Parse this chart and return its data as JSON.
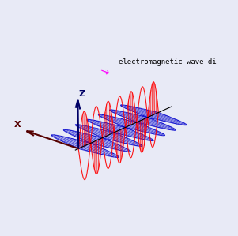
{
  "background_color": "#e8eaf6",
  "wave_color_E": "#ff0000",
  "wave_color_B": "#0000cc",
  "axis_color": "#000000",
  "arrow_z_color": "#000066",
  "arrow_x_color": "#550000",
  "propagation_color": "#000000",
  "annotation_color": "#ff00ff",
  "annotation_text": "electromagnetic wave di",
  "n_points": 300,
  "n_cycles": 3.5,
  "amplitude": 1.8,
  "n_field_lines": 60,
  "elev": 22,
  "azim": -50
}
